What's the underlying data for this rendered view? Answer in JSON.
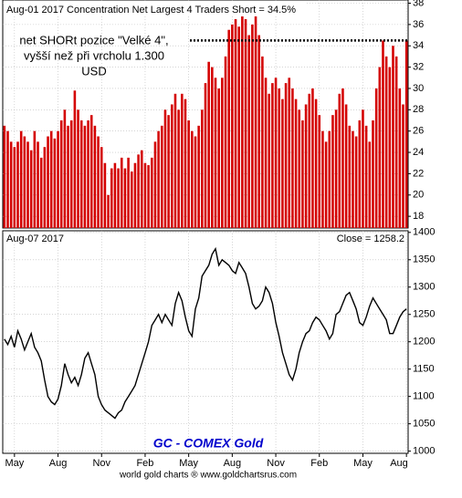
{
  "chart_data": [
    {
      "type": "bar",
      "title": "Aug-01 2017  Concentration Net Largest 4 Traders Short = 34.5%",
      "annotation": [
        "net SHORt pozice \"Velké 4\",",
        "vyšší než při vrcholu 1.300",
        "USD"
      ],
      "reference_line": 34.5,
      "color": "#d40000",
      "values": [
        26.5,
        26,
        25,
        24.5,
        25,
        26,
        25.5,
        25,
        24.2,
        26,
        25,
        23.5,
        24.5,
        25.5,
        26,
        25.3,
        26,
        27,
        28,
        26.5,
        27,
        29.8,
        28,
        27,
        26.5,
        27,
        27.5,
        26.5,
        25.5,
        24.5,
        23,
        20,
        22.5,
        23,
        22.5,
        23.5,
        22.5,
        23.5,
        22.2,
        23,
        23.8,
        24.2,
        23,
        22.8,
        23.5,
        25,
        26,
        26.5,
        28,
        27.5,
        28.5,
        29.5,
        28,
        29.5,
        29,
        27,
        26,
        25.5,
        26.5,
        28,
        30.5,
        32.5,
        32,
        31,
        30,
        31,
        33,
        35.5,
        36,
        36.5,
        35.8,
        37,
        36.5,
        35,
        36,
        36.8,
        35,
        33,
        31,
        29.5,
        30.5,
        31,
        30,
        29,
        30.5,
        31,
        30,
        29,
        28,
        27,
        28.5,
        29.5,
        30,
        29,
        27.5,
        26,
        25,
        26,
        27.5,
        28,
        29.5,
        30,
        28.5,
        26.5,
        26,
        25.5,
        27,
        28,
        26.5,
        25,
        27,
        30,
        32,
        34.5,
        33,
        32,
        34,
        33,
        30,
        28.5,
        34.5
      ],
      "ylim": [
        16.9,
        38.3
      ],
      "yticks": [
        18,
        20,
        22,
        24,
        26,
        28,
        30,
        32,
        34,
        36,
        38
      ],
      "grid": true
    },
    {
      "type": "line",
      "title": "Aug-07 2017",
      "close_label": "Close = 1258.2",
      "series_label": "GC - COMEX Gold",
      "color": "#000000",
      "values": [
        1205,
        1195,
        1210,
        1190,
        1220,
        1205,
        1185,
        1200,
        1215,
        1190,
        1180,
        1165,
        1130,
        1100,
        1090,
        1085,
        1095,
        1120,
        1160,
        1140,
        1125,
        1135,
        1120,
        1140,
        1170,
        1180,
        1160,
        1140,
        1100,
        1085,
        1075,
        1070,
        1065,
        1060,
        1070,
        1075,
        1090,
        1100,
        1110,
        1120,
        1140,
        1160,
        1180,
        1200,
        1230,
        1240,
        1250,
        1235,
        1250,
        1240,
        1230,
        1270,
        1290,
        1275,
        1245,
        1220,
        1210,
        1260,
        1280,
        1320,
        1330,
        1340,
        1360,
        1370,
        1340,
        1350,
        1345,
        1340,
        1330,
        1325,
        1345,
        1335,
        1325,
        1300,
        1270,
        1260,
        1265,
        1275,
        1300,
        1290,
        1270,
        1235,
        1210,
        1180,
        1160,
        1140,
        1130,
        1150,
        1180,
        1200,
        1215,
        1220,
        1235,
        1245,
        1240,
        1230,
        1220,
        1205,
        1215,
        1250,
        1255,
        1270,
        1285,
        1290,
        1275,
        1260,
        1235,
        1230,
        1245,
        1265,
        1280,
        1270,
        1260,
        1250,
        1240,
        1215,
        1215,
        1230,
        1245,
        1255,
        1260
      ],
      "xlim": [
        0,
        121
      ],
      "xticks": [
        {
          "value": 3.5,
          "label": "May"
        },
        {
          "value": 16.5,
          "label": "Aug"
        },
        {
          "value": 29.5,
          "label": "Nov"
        },
        {
          "value": 42.5,
          "label": "Feb"
        },
        {
          "value": 55.5,
          "label": "May"
        },
        {
          "value": 68.5,
          "label": "Aug"
        },
        {
          "value": 81.5,
          "label": "Nov"
        },
        {
          "value": 94.5,
          "label": "Feb"
        },
        {
          "value": 107.5,
          "label": "May"
        },
        {
          "value": 120.5,
          "label": "Aug"
        }
      ],
      "ylim": [
        996,
        1403
      ],
      "yticks": [
        1000,
        1050,
        1100,
        1150,
        1200,
        1250,
        1300,
        1350,
        1400
      ],
      "grid": true
    }
  ],
  "footer": "world gold charts ® www.goldchartsrus.com"
}
